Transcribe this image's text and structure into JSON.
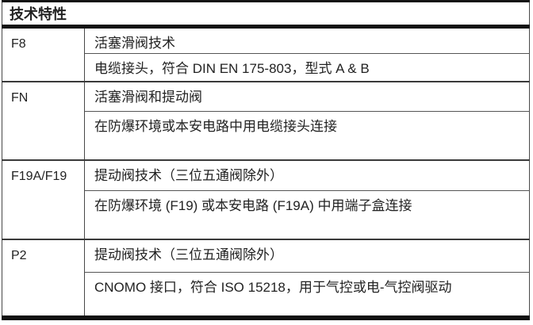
{
  "table": {
    "title": "技术特性",
    "groups": [
      {
        "label": "F8",
        "rows": [
          "活塞滑阀技术",
          "电缆接头，符合 DIN EN 175-803，型式 A & B"
        ]
      },
      {
        "label": "FN",
        "rows": [
          "活塞滑阀和提动阀",
          "在防爆环境或本安电路中用电缆接头连接"
        ]
      },
      {
        "label": "F19A/F19",
        "rows": [
          "提动阀技术（三位五通阀除外）",
          "在防爆环境 (F19) 或本安电路 (F19A) 中用端子盒连接"
        ]
      },
      {
        "label": "P2",
        "rows": [
          "提动阀技术（三位五通阀除外）",
          "CNOMO 接口，符合 ISO 15218，用于气控或电-气控阀驱动"
        ]
      }
    ],
    "colors": {
      "text": "#222222",
      "border_thick": "#121212",
      "border_thin": "#484848",
      "background": "#ffffff"
    }
  }
}
